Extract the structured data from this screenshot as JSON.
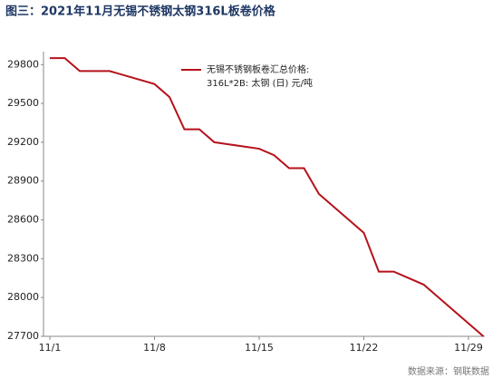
{
  "chart_data": {
    "type": "line",
    "title": "图三：2021年11月无锡不锈钢太钢316L板卷价格",
    "x": [
      "11/1",
      "11/2",
      "11/3",
      "11/5",
      "11/8",
      "11/9",
      "11/10",
      "11/11",
      "11/12",
      "11/15",
      "11/16",
      "11/17",
      "11/18",
      "11/19",
      "11/22",
      "11/23",
      "11/24",
      "11/26",
      "11/30"
    ],
    "xlim": [
      "11/1",
      "11/30"
    ],
    "xticks": [
      "11/1",
      "11/8",
      "11/15",
      "11/22",
      "11/29"
    ],
    "series": [
      {
        "name": "无锡不锈钢板卷汇总价格:",
        "note": "316L*2B: 太钢 (日)  元/吨",
        "color": "#b5121b",
        "values": [
          29850,
          29850,
          29750,
          29750,
          29650,
          29550,
          29300,
          29300,
          29200,
          29150,
          29100,
          29000,
          29000,
          28800,
          28500,
          28200,
          28200,
          28100,
          27700
        ]
      }
    ],
    "ylim": [
      27700,
      29900
    ],
    "yticks": [
      27700,
      28000,
      28300,
      28600,
      28900,
      29200,
      29500,
      29800
    ],
    "grid": false,
    "source": "数据来源：钢联数据"
  }
}
